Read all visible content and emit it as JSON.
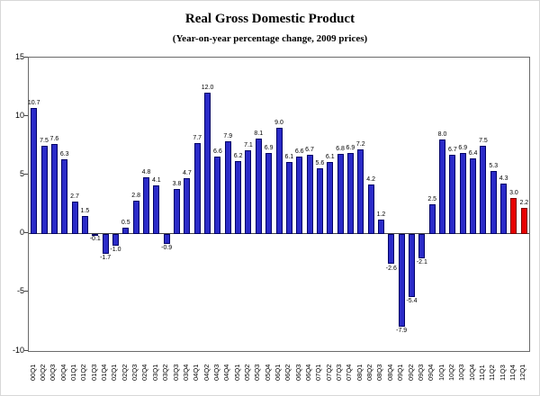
{
  "chart_data": {
    "type": "bar",
    "title": "Real Gross Domestic Product",
    "subtitle": "(Year-on-year percentage change, 2009 prices)",
    "categories": [
      "00Q1",
      "00Q2",
      "00Q3",
      "00Q4",
      "01Q1",
      "01Q2",
      "01Q3",
      "01Q4",
      "02Q1",
      "02Q2",
      "02Q3",
      "02Q4",
      "03Q1",
      "03Q2",
      "03Q3",
      "03Q4",
      "04Q1",
      "04Q2",
      "04Q3",
      "04Q4",
      "05Q1",
      "05Q2",
      "05Q3",
      "05Q4",
      "06Q1",
      "06Q2",
      "06Q3",
      "06Q4",
      "07Q1",
      "07Q2",
      "07Q3",
      "07Q4",
      "08Q1",
      "08Q2",
      "08Q3",
      "08Q4",
      "09Q1",
      "09Q2",
      "09Q3",
      "09Q4",
      "10Q1",
      "10Q2",
      "10Q3",
      "10Q4",
      "11Q1",
      "11Q2",
      "11Q3",
      "11Q4",
      "12Q1"
    ],
    "values": [
      10.7,
      7.5,
      7.6,
      6.3,
      2.7,
      1.5,
      -0.1,
      -1.7,
      -1.0,
      0.5,
      2.8,
      4.8,
      4.1,
      -0.9,
      3.8,
      4.7,
      7.7,
      12.0,
      6.6,
      7.9,
      6.2,
      7.1,
      8.1,
      6.9,
      9.0,
      6.1,
      6.6,
      6.7,
      5.6,
      6.1,
      6.8,
      6.9,
      7.2,
      4.2,
      1.2,
      -2.6,
      -7.9,
      -5.4,
      -2.1,
      2.5,
      8.0,
      6.7,
      6.9,
      6.4,
      7.5,
      5.3,
      4.3,
      3.0,
      2.2
    ],
    "ylim": [
      -10,
      15
    ],
    "y_ticks": [
      15,
      10,
      5,
      0,
      -5,
      -10
    ],
    "grid": false,
    "legend": "none",
    "data_labels": true,
    "bar_color": "#2b2bc8",
    "bar_border_color": "#000066",
    "highlight_color": "#e80000",
    "highlight_border_color": "#7a0000",
    "highlight_indices": [
      47,
      48
    ]
  }
}
